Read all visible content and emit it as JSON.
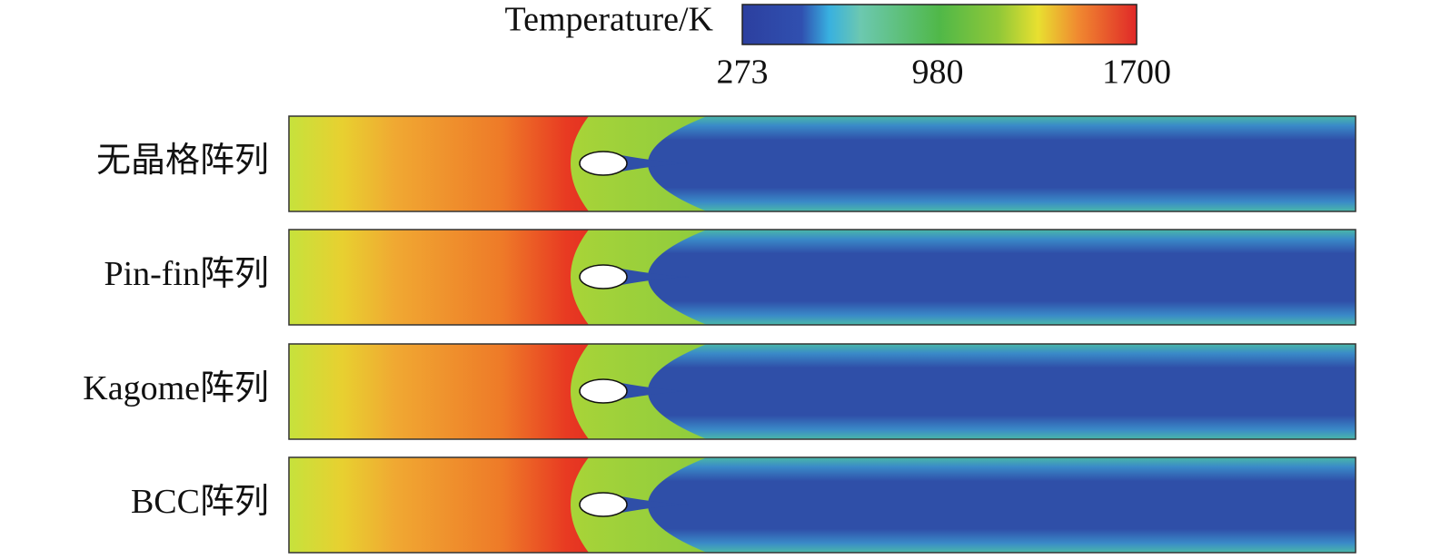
{
  "colorbar": {
    "title": "Temperature/K",
    "range": [
      273,
      1700
    ],
    "ticks": [
      273,
      980,
      1700
    ]
  },
  "panels": [
    {
      "label": "无晶格阵列"
    },
    {
      "label": "Pin-fin阵列"
    },
    {
      "label": "Kagome阵列"
    },
    {
      "label": "BCC阵列"
    }
  ]
}
